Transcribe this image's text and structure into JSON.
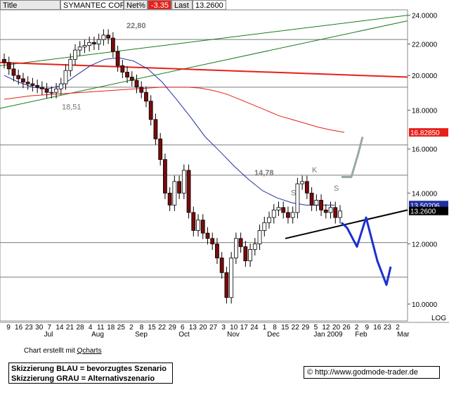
{
  "header": {
    "title_label": "Title",
    "title_value": "SYMANTEC CORP",
    "net_label": "Net%",
    "net_value": "-3.35",
    "last_label": "Last",
    "last_value": "13.2600"
  },
  "footer": {
    "credit_prefix": "Chart erstellt mit ",
    "credit_brand": "Qcharts",
    "legend_blue": "Skizzierung BLAU = bevorzugtes Szenario",
    "legend_gray": "Skizzierung GRAU = Alternativszenario",
    "copyright": "© http://www.godmode-trader.de"
  },
  "chart_data": {
    "type": "candlestick",
    "y_axis": {
      "ticks": [
        "10.0000",
        "12.0000",
        "14.0000",
        "16.0000",
        "18.0000",
        "20.0000",
        "22.0000",
        "24.0000"
      ],
      "ylim": [
        9.5,
        24.4
      ],
      "scale_label": "LOG",
      "price_tags": [
        {
          "value": 16.8285,
          "label": "16.82850",
          "color": "#e8201a"
        },
        {
          "value": 13.50206,
          "label": "13.50206",
          "color": "#2030a0"
        },
        {
          "value": 13.26,
          "label": "13.2600",
          "color": "#000000"
        }
      ]
    },
    "x_axis": {
      "day_ticks": [
        "9",
        "16",
        "23",
        "30",
        "7",
        "14",
        "21",
        "28",
        "4",
        "11",
        "18",
        "25",
        "2",
        "8",
        "15",
        "22",
        "29",
        "6",
        "13",
        "20",
        "27",
        "3",
        "10",
        "17",
        "24",
        "1",
        "8",
        "15",
        "22",
        "29",
        "5",
        "12",
        "20",
        "26",
        "2",
        "9",
        "16",
        "23",
        "2"
      ],
      "month_labels": [
        "Jul",
        "Aug",
        "Sep",
        "Oct",
        "Nov",
        "Dec",
        "Jan 2009",
        "Feb",
        "Mar"
      ]
    },
    "horizontal_levels": [
      22.3,
      19.3,
      16.2,
      14.78,
      12.05,
      10.85
    ],
    "annotations": [
      {
        "text": "22,80",
        "value": 22.8
      },
      {
        "text": "18,51",
        "value": 18.51
      },
      {
        "text": "14,78",
        "value": 14.78
      },
      {
        "text": "S",
        "value": 13.9
      },
      {
        "text": "K",
        "value": 14.9
      },
      {
        "text": "S",
        "value": 14.1
      }
    ],
    "moving_averages": [
      {
        "color": "#e8201a",
        "values": [
          18.6,
          18.7,
          18.8,
          18.85,
          18.9,
          18.95,
          19.0,
          19.05,
          19.1,
          19.15,
          19.2,
          19.25,
          19.3,
          19.3,
          19.3,
          19.25,
          19.1,
          18.9,
          18.6,
          18.3,
          18.0,
          17.7,
          17.5,
          17.3,
          17.1,
          16.95,
          16.83
        ]
      },
      {
        "color": "#2030a0",
        "values": [
          20.0,
          19.6,
          19.3,
          19.2,
          19.4,
          20.0,
          20.6,
          21.0,
          21.1,
          20.9,
          20.4,
          19.6,
          18.6,
          17.6,
          16.6,
          15.9,
          15.2,
          14.6,
          14.1,
          13.8,
          13.6,
          13.5,
          13.5,
          13.5
        ]
      }
    ],
    "candles_close": [
      20.8,
      20.4,
      20.0,
      19.8,
      19.6,
      19.5,
      19.4,
      19.3,
      19.2,
      19.0,
      19.0,
      19.2,
      19.5,
      20.3,
      21.0,
      21.6,
      21.8,
      21.9,
      22.1,
      22.0,
      22.3,
      22.6,
      22.4,
      21.5,
      20.6,
      20.2,
      19.9,
      19.7,
      19.3,
      19.0,
      18.5,
      17.5,
      16.5,
      15.5,
      14.0,
      13.5,
      14.5,
      14.0,
      15.0,
      13.2,
      12.5,
      12.9,
      12.4,
      12.2,
      12.0,
      11.5,
      11.0,
      10.2,
      11.5,
      12.2,
      11.9,
      11.4,
      11.8,
      12.0,
      12.5,
      12.8,
      13.0,
      13.3,
      13.4,
      13.2,
      13.0,
      13.2,
      14.4,
      14.5,
      14.0,
      13.5,
      13.7,
      13.3,
      13.2,
      13.4,
      13.0,
      13.26
    ],
    "trendlines": [
      {
        "color": "#1a7a1a",
        "from": [
          0,
          20.6
        ],
        "to": [
          1,
          24.0
        ]
      },
      {
        "color": "#1a7a1a",
        "from": [
          0,
          18.1
        ],
        "to": [
          1,
          23.6
        ]
      },
      {
        "color": "#e8201a",
        "from": [
          0,
          20.8
        ],
        "to": [
          1,
          19.9
        ]
      },
      {
        "color": "#000000",
        "from": [
          0.7,
          12.2
        ],
        "to": [
          1,
          13.3
        ]
      }
    ],
    "scenarios": [
      {
        "name": "blue",
        "color": "#1a2fd0",
        "points": [
          12.8,
          12.6,
          11.9,
          13.0,
          11.4,
          10.6,
          11.2
        ]
      },
      {
        "name": "gray",
        "color": "#98a8a8",
        "points": [
          14.7,
          14.7,
          15.8,
          16.6
        ]
      }
    ]
  }
}
